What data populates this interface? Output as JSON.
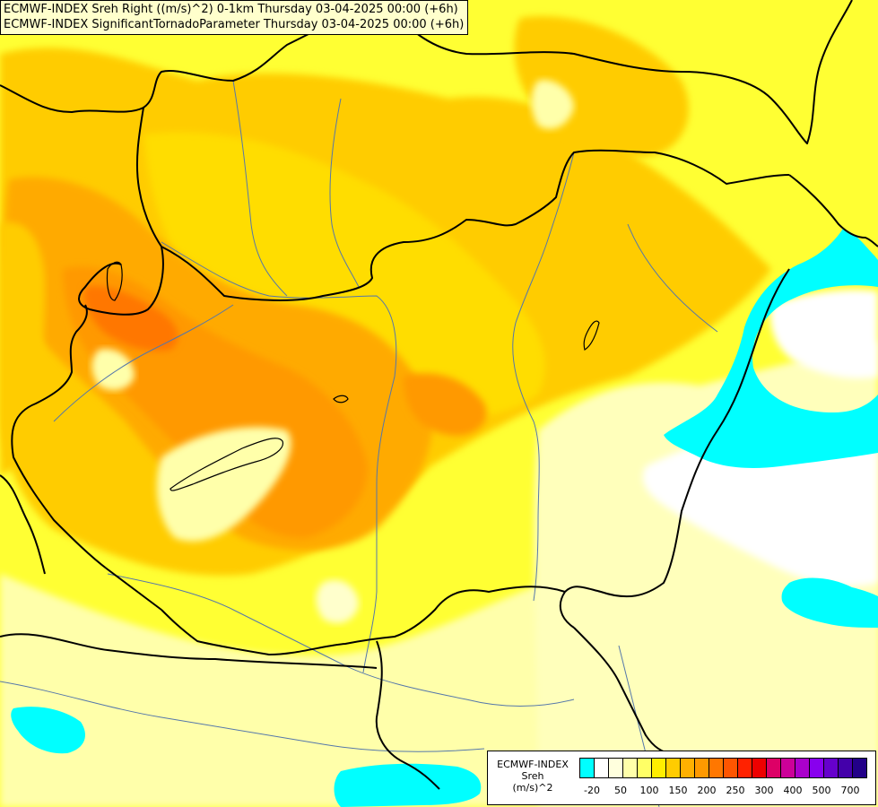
{
  "titles": {
    "line1": "ECMWF-INDEX Sreh Right ((m/s)^2) 0-1km Thursday 03-04-2025 00:00 (+6h)",
    "line2": "ECMWF-INDEX SignificantTornadoParameter Thursday 03-04-2025 00:00 (+6h)"
  },
  "legend": {
    "model": "ECMWF-INDEX",
    "variable": "Sreh",
    "unit": "(m/s)^2",
    "colors": [
      "#00ffff",
      "#ffffff",
      "#ffffdd",
      "#ffffaa",
      "#ffff66",
      "#ffee00",
      "#ffcc00",
      "#ffb000",
      "#ff9900",
      "#ff7700",
      "#ff5500",
      "#ff2200",
      "#ee0000",
      "#dd0066",
      "#cc0099",
      "#aa00cc",
      "#8800ee",
      "#6600cc",
      "#4400aa",
      "#220088"
    ],
    "tick_labels": [
      "-20",
      "50",
      "100",
      "150",
      "200",
      "250",
      "300",
      "400",
      "500",
      "700"
    ]
  },
  "map_colors": {
    "cyan": "#00ffff",
    "white": "#ffffff",
    "pale": "#ffffcc",
    "light_yellow": "#ffff99",
    "yellow": "#ffff00",
    "gold": "#ffdd00",
    "amber": "#ffcc00",
    "orange_light": "#ffaa00",
    "orange": "#ff9900",
    "orange_dark": "#ff7700",
    "border": "#000000",
    "river": "#5577aa"
  }
}
